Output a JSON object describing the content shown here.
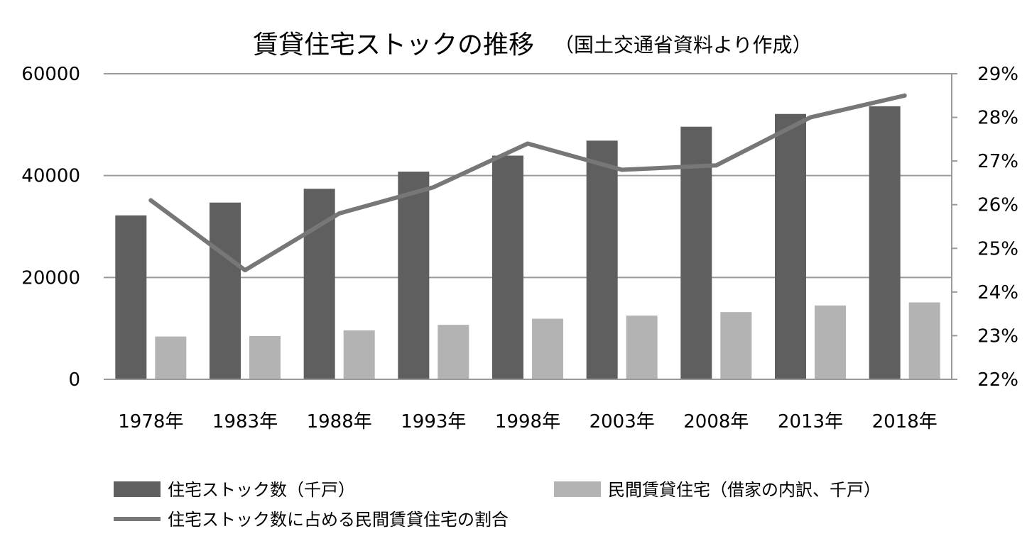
{
  "chart_data": {
    "type": "bar",
    "title": "賃貸住宅ストックの推移",
    "subtitle": "（国土交通省資料より作成）",
    "categories": [
      "1978年",
      "1983年",
      "1988年",
      "1993年",
      "1998年",
      "2003年",
      "2008年",
      "2013年",
      "2018年"
    ],
    "series": [
      {
        "name": "住宅ストック数（千戸）",
        "type": "bar",
        "axis": "left",
        "color": "#5f5f5f",
        "values": [
          32190,
          34705,
          37413,
          40773,
          43922,
          46863,
          49598,
          52102,
          53616
        ]
      },
      {
        "name": "民間賃貸住宅（借家の内訳、千戸）",
        "type": "bar",
        "axis": "left",
        "color": "#b3b3b3",
        "values": [
          8400,
          8500,
          9600,
          10700,
          11900,
          12500,
          13200,
          14500,
          15100
        ]
      },
      {
        "name": "住宅ストック数に占める民間賃貸住宅の割合",
        "type": "line",
        "axis": "right",
        "color": "#777777",
        "values": [
          26.1,
          24.5,
          25.8,
          26.4,
          27.4,
          26.8,
          26.9,
          28.0,
          28.5
        ]
      }
    ],
    "y_left": {
      "min": 0,
      "max": 60000,
      "ticks": [
        0,
        20000,
        40000,
        60000
      ],
      "tick_labels": [
        "0",
        "20000",
        "40000",
        "60000"
      ]
    },
    "y_right": {
      "min": 22,
      "max": 29,
      "ticks": [
        22,
        23,
        24,
        25,
        26,
        27,
        28,
        29
      ],
      "tick_labels": [
        "22%",
        "23%",
        "24%",
        "25%",
        "26%",
        "27%",
        "28%",
        "29%"
      ]
    },
    "grid": true,
    "legend_position": "bottom"
  }
}
